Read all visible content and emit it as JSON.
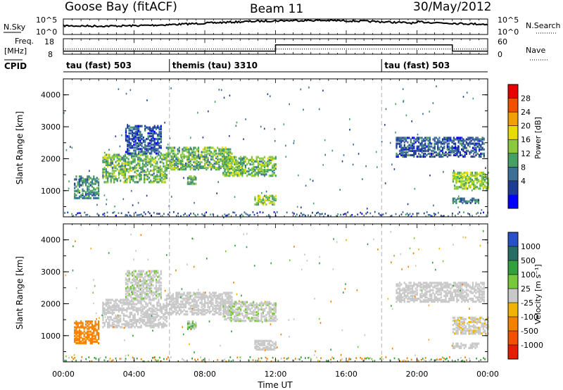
{
  "header": {
    "station": "Goose Bay (fitACF)",
    "beam": "Beam 11",
    "date": "30/May/2012"
  },
  "noise_panel": {
    "left_label": "N.Sky",
    "right_label": "N.Search",
    "left_ticks": [
      "10^5",
      "10^0"
    ],
    "right_ticks": [
      "10^5",
      "10^0"
    ]
  },
  "freq_panel": {
    "left_label_line1": "Freq.",
    "left_label_line2": "[MHz]",
    "left_ticks": [
      "18",
      "8"
    ],
    "right_label": "Nave",
    "right_ticks": [
      "60",
      "0"
    ]
  },
  "cpid_panel": {
    "label": "CPID",
    "segments": [
      {
        "label": "tau (fast) 503",
        "start_h": 0
      },
      {
        "label": "themis (tau) 3310",
        "start_h": 6
      },
      {
        "label": "tau (fast) 503",
        "start_h": 18
      }
    ]
  },
  "power_panel": {
    "ylabel": "Slant Range [km]",
    "y_ticks": [
      "4000",
      "3000",
      "2000",
      "1000"
    ],
    "colorbar_label": "Power [dB]",
    "colorbar_ticks": [
      "28",
      "24",
      "20",
      "16",
      "12",
      "8",
      "4"
    ],
    "colors": [
      "#0000ff",
      "#1e3c96",
      "#3c6e96",
      "#46a064",
      "#8cc83c",
      "#e6dc00",
      "#f0a000",
      "#f05000",
      "#e60000"
    ]
  },
  "velocity_panel": {
    "ylabel": "Slant Range [km]",
    "y_ticks": [
      "4000",
      "3000",
      "2000",
      "1000"
    ],
    "colorbar_label": "Velocity [m s⁻¹]",
    "colorbar_ticks": [
      "1000",
      "500",
      "100",
      "25",
      "-25",
      "-100",
      "-500",
      "-1000"
    ],
    "colors": [
      "#2850c8",
      "#286e64",
      "#32a03c",
      "#78c83c",
      "#c8c8c8",
      "#f0b400",
      "#f08200",
      "#f05000",
      "#e61e00"
    ]
  },
  "x_axis": {
    "label": "Time UT",
    "ticks": [
      "00:00",
      "04:00",
      "08:00",
      "12:00",
      "16:00",
      "20:00",
      "00:00"
    ]
  },
  "chart_data": {
    "type": "heatmap",
    "title": "Goose Bay (fitACF)",
    "x": "time UT (hours, 0-24)",
    "xlim_hours": [
      0,
      24
    ],
    "ylim_km": [
      180,
      4500
    ],
    "frequency_mhz": [
      {
        "from_h": 0,
        "to_h": 12,
        "value": 10
      },
      {
        "from_h": 12,
        "to_h": 22,
        "value": 14
      },
      {
        "from_h": 22,
        "to_h": 24,
        "value": 10
      }
    ],
    "nave": 20,
    "scatter_regions": [
      {
        "t_start": 0.6,
        "t_end": 2.0,
        "range_min": 800,
        "range_max": 1500,
        "power_db": 10,
        "velocity": -300
      },
      {
        "t_start": 2.2,
        "t_end": 5.8,
        "range_min": 1300,
        "range_max": 2200,
        "power_db": 14,
        "velocity": 0
      },
      {
        "t_start": 3.5,
        "t_end": 5.5,
        "range_min": 2200,
        "range_max": 3100,
        "power_db": 6,
        "velocity": 20
      },
      {
        "t_start": 5.8,
        "t_end": 9.5,
        "range_min": 1700,
        "range_max": 2400,
        "power_db": 14,
        "velocity": 0
      },
      {
        "t_start": 7.0,
        "t_end": 7.5,
        "range_min": 1250,
        "range_max": 1500,
        "power_db": 12,
        "velocity": 80
      },
      {
        "t_start": 9.0,
        "t_end": 12.0,
        "range_min": 1500,
        "range_max": 2100,
        "power_db": 14,
        "velocity": 20
      },
      {
        "t_start": 10.8,
        "t_end": 12.0,
        "range_min": 600,
        "range_max": 900,
        "power_db": 16,
        "velocity": 0
      },
      {
        "t_start": 18.8,
        "t_end": 23.8,
        "range_min": 2100,
        "range_max": 2700,
        "power_db": 6,
        "velocity": 0
      },
      {
        "t_start": 22.0,
        "t_end": 24.0,
        "range_min": 1100,
        "range_max": 1600,
        "power_db": 16,
        "velocity": -20
      },
      {
        "t_start": 22.0,
        "t_end": 23.5,
        "range_min": 650,
        "range_max": 800,
        "power_db": 8,
        "velocity": 0
      }
    ]
  }
}
